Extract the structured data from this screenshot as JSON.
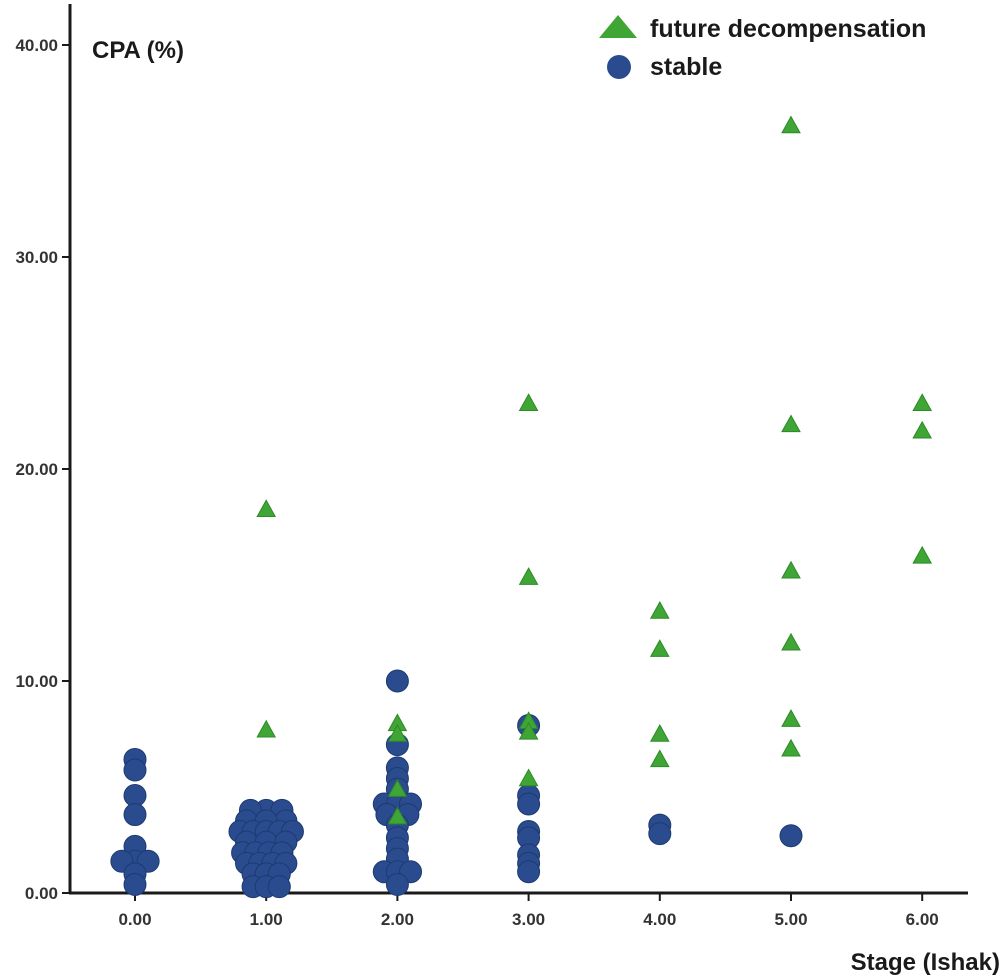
{
  "chart_data": {
    "type": "scatter",
    "title": "",
    "xlabel": "Stage (Ishak)",
    "ylabel": "CPA (%)",
    "xlim": [
      -0.5,
      6.35
    ],
    "ylim": [
      0,
      40
    ],
    "x_ticks": [
      "0.00",
      "1.00",
      "2.00",
      "3.00",
      "4.00",
      "5.00",
      "6.00"
    ],
    "y_ticks": [
      "0.00",
      "10.00",
      "20.00",
      "30.00",
      "40.00"
    ],
    "grid": false,
    "legend_position": "top-right",
    "colors": {
      "future_decompensation": "#3fa535",
      "stable": "#2a4c8e",
      "axis": "#1a1a1a"
    },
    "series": [
      {
        "name": "future decompensation",
        "marker": "triangle",
        "color": "#3fa535",
        "points": [
          [
            1,
            18.1
          ],
          [
            1,
            7.7
          ],
          [
            2,
            8.0
          ],
          [
            2,
            7.5
          ],
          [
            2,
            4.9
          ],
          [
            2,
            3.6
          ],
          [
            3,
            23.1
          ],
          [
            3,
            14.9
          ],
          [
            3,
            8.1
          ],
          [
            3,
            7.6
          ],
          [
            3,
            5.4
          ],
          [
            4,
            13.3
          ],
          [
            4,
            11.5
          ],
          [
            4,
            7.5
          ],
          [
            4,
            6.3
          ],
          [
            5,
            36.2
          ],
          [
            5,
            22.1
          ],
          [
            5,
            15.2
          ],
          [
            5,
            11.8
          ],
          [
            5,
            8.2
          ],
          [
            5,
            6.8
          ],
          [
            6,
            23.1
          ],
          [
            6,
            21.8
          ],
          [
            6,
            15.9
          ]
        ]
      },
      {
        "name": "stable",
        "marker": "circle",
        "color": "#2a4c8e",
        "points": [
          [
            0,
            6.3
          ],
          [
            0,
            5.8
          ],
          [
            0,
            4.6
          ],
          [
            0,
            3.7
          ],
          [
            0,
            2.2
          ],
          [
            0,
            1.5
          ],
          [
            -0.1,
            1.5
          ],
          [
            0.1,
            1.5
          ],
          [
            0,
            0.9
          ],
          [
            0,
            0.4
          ],
          [
            1,
            3.9
          ],
          [
            0.88,
            3.9
          ],
          [
            1.12,
            3.9
          ],
          [
            0.85,
            3.4
          ],
          [
            1.15,
            3.4
          ],
          [
            1,
            3.4
          ],
          [
            0.8,
            2.9
          ],
          [
            0.9,
            2.9
          ],
          [
            1,
            2.9
          ],
          [
            1.1,
            2.9
          ],
          [
            1.2,
            2.9
          ],
          [
            0.85,
            2.4
          ],
          [
            1,
            2.4
          ],
          [
            1.15,
            2.4
          ],
          [
            0.82,
            1.9
          ],
          [
            0.92,
            1.9
          ],
          [
            1.02,
            1.9
          ],
          [
            1.12,
            1.9
          ],
          [
            0.85,
            1.4
          ],
          [
            0.95,
            1.4
          ],
          [
            1.05,
            1.4
          ],
          [
            1.15,
            1.4
          ],
          [
            0.9,
            0.9
          ],
          [
            1,
            0.9
          ],
          [
            1.1,
            0.9
          ],
          [
            0.9,
            0.3
          ],
          [
            1,
            0.3
          ],
          [
            1.1,
            0.3
          ],
          [
            2,
            10.0
          ],
          [
            2,
            7.0
          ],
          [
            2,
            5.9
          ],
          [
            2,
            5.4
          ],
          [
            2,
            4.9
          ],
          [
            1.9,
            4.2
          ],
          [
            2,
            4.2
          ],
          [
            2.1,
            4.2
          ],
          [
            1.92,
            3.7
          ],
          [
            2.08,
            3.7
          ],
          [
            2,
            3.2
          ],
          [
            2,
            2.6
          ],
          [
            2,
            2.1
          ],
          [
            2,
            1.6
          ],
          [
            1.9,
            1.0
          ],
          [
            2,
            1.0
          ],
          [
            2.1,
            1.0
          ],
          [
            2,
            0.4
          ],
          [
            3,
            7.9
          ],
          [
            3,
            4.6
          ],
          [
            3,
            4.2
          ],
          [
            3,
            2.9
          ],
          [
            3,
            2.6
          ],
          [
            3,
            1.8
          ],
          [
            3,
            1.4
          ],
          [
            3,
            1.0
          ],
          [
            4,
            3.2
          ],
          [
            4,
            2.8
          ],
          [
            5,
            2.7
          ]
        ]
      }
    ]
  }
}
